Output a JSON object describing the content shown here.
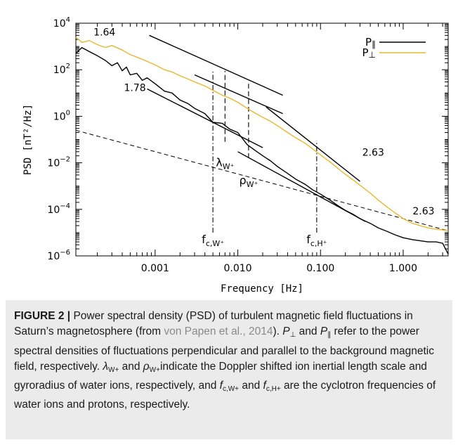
{
  "chart_data": {
    "type": "line",
    "xlabel": "Frequency [Hz]",
    "ylabel": "PSD [nT²/Hz]",
    "xscale": "log",
    "yscale": "log",
    "xlim": [
      0.00011,
      3.5
    ],
    "ylim": [
      1e-06,
      10000
    ],
    "x_ticks": [
      {
        "v": 0.001,
        "label": "0.001"
      },
      {
        "v": 0.01,
        "label": "0.010"
      },
      {
        "v": 0.1,
        "label": "0.100"
      },
      {
        "v": 1.0,
        "label": "1.000"
      }
    ],
    "y_ticks": [
      {
        "v": 1e-06,
        "b": "10",
        "e": "−6"
      },
      {
        "v": 0.0001,
        "b": "10",
        "e": "−4"
      },
      {
        "v": 0.01,
        "b": "10",
        "e": "−2"
      },
      {
        "v": 1,
        "b": "10",
        "e": "0"
      },
      {
        "v": 100,
        "b": "10",
        "e": "2"
      },
      {
        "v": 10000,
        "b": "10",
        "e": "4"
      }
    ],
    "legend_position": "top-right",
    "series": [
      {
        "name": "P∥",
        "color": "#000000",
        "x": [
          0.00011,
          0.00013,
          0.00016,
          0.0002,
          0.00025,
          0.0003,
          0.00035,
          0.0004,
          0.00045,
          0.0005,
          0.0006,
          0.0007,
          0.0008,
          0.001,
          0.0013,
          0.0016,
          0.002,
          0.0025,
          0.003,
          0.004,
          0.005,
          0.0065,
          0.008,
          0.01,
          0.013,
          0.016,
          0.02,
          0.025,
          0.03,
          0.04,
          0.05,
          0.065,
          0.08,
          0.1,
          0.13,
          0.16,
          0.2,
          0.25,
          0.3,
          0.4,
          0.5,
          0.65,
          0.8,
          1.0,
          1.3,
          1.6,
          2.0,
          2.5,
          3.0,
          3.5
        ],
        "values": [
          500,
          900,
          600,
          400,
          250,
          150,
          200,
          90,
          130,
          60,
          70,
          35,
          45,
          25,
          12,
          10,
          5,
          3.5,
          2.2,
          1.3,
          0.55,
          0.5,
          0.28,
          0.2,
          0.06,
          0.035,
          0.02,
          0.012,
          0.007,
          0.0035,
          0.002,
          0.0012,
          0.0007,
          0.00045,
          0.00025,
          0.00015,
          9e-05,
          6e-05,
          4e-05,
          2.5e-05,
          1.6e-05,
          1.1e-05,
          8e-06,
          6e-06,
          5e-06,
          4.5e-06,
          4e-06,
          4e-06,
          3.5e-06,
          1.2e-06
        ]
      },
      {
        "name": "P⊥",
        "color": "#e8b82e",
        "x": [
          0.00011,
          0.00013,
          0.00016,
          0.0002,
          0.00025,
          0.0003,
          0.0004,
          0.0005,
          0.0006,
          0.0008,
          0.001,
          0.0013,
          0.0016,
          0.002,
          0.0025,
          0.003,
          0.004,
          0.005,
          0.0065,
          0.008,
          0.01,
          0.013,
          0.016,
          0.02,
          0.025,
          0.03,
          0.04,
          0.05,
          0.065,
          0.08,
          0.1,
          0.13,
          0.16,
          0.2,
          0.25,
          0.3,
          0.4,
          0.5,
          0.65,
          0.8,
          1.0,
          1.3,
          1.6,
          2.0,
          2.5,
          3.0,
          3.5
        ],
        "values": [
          2500,
          1500,
          1800,
          1200,
          900,
          1100,
          700,
          450,
          350,
          230,
          160,
          100,
          80,
          55,
          40,
          30,
          20,
          13,
          8,
          6,
          4,
          2.2,
          1.4,
          0.9,
          0.6,
          0.4,
          0.2,
          0.12,
          0.07,
          0.04,
          0.022,
          0.011,
          0.006,
          0.0032,
          0.0018,
          0.0011,
          0.0005,
          0.00025,
          0.00012,
          7e-05,
          4e-05,
          2.5e-05,
          2e-05,
          1.6e-05,
          1.4e-05,
          1.3e-05,
          1.2e-05
        ]
      }
    ],
    "fit_lines": [
      {
        "slope_label": "1.64",
        "x": [
          0.00085,
          0.035
        ],
        "y": [
          3000,
          8
        ]
      },
      {
        "slope_label": "",
        "x": [
          0.003,
          0.035
        ],
        "y": [
          60,
          1.3
        ]
      },
      {
        "slope_label": "1.78",
        "x": [
          0.0008,
          0.02
        ],
        "y": [
          15,
          0.045
        ]
      },
      {
        "slope_label": "2.63",
        "x": [
          0.022,
          0.3
        ],
        "y": [
          2.5,
          0.0016
        ]
      },
      {
        "slope_label": "",
        "x": [
          0.01,
          0.35
        ],
        "y": [
          0.03,
          3e-05
        ]
      }
    ],
    "fit_labels": [
      {
        "text": "1.64",
        "x": 0.00018,
        "y": 3000
      },
      {
        "text": "1.78",
        "x": 0.00042,
        "y": 12
      },
      {
        "text": "2.63",
        "x": 0.32,
        "y": 0.02
      },
      {
        "text": "2.63",
        "x": 1.3,
        "y": 6e-05
      }
    ],
    "noise_line": {
      "x": [
        0.00011,
        3.5
      ],
      "y": [
        0.25,
        1.2e-05
      ]
    },
    "markers": [
      {
        "name": "f_c,W+",
        "x": 0.005,
        "style": "dashdot",
        "y": [
          1e-05,
          90
        ],
        "label_main": "f",
        "label_sub": "c,W⁺",
        "label_y": 3.5e-06
      },
      {
        "name": "lambda_W+",
        "x": 0.007,
        "style": "dashed",
        "y": [
          0.08,
          90
        ],
        "label_main": "λ",
        "label_sub": "W⁺",
        "label_y": 0.007
      },
      {
        "name": "rho_W+",
        "x": 0.0135,
        "style": "dashed",
        "y": [
          0.016,
          25
        ],
        "label_main": "ρ",
        "label_sub": "W⁺",
        "label_y": 0.0012
      },
      {
        "name": "f_c,H+",
        "x": 0.09,
        "style": "dashdot",
        "y": [
          1e-05,
          0.09
        ],
        "label_main": "f",
        "label_sub": "c,H⁺",
        "label_y": 3.5e-06
      }
    ]
  },
  "caption": {
    "label": "FIGURE 2 |",
    "text_1": " Power spectral density (PSD) of turbulent magnetic field fluctuations in Saturn’s magnetosphere (from ",
    "ref": "von Papen et al., 2014",
    "text_2": "). ",
    "p_perp": "P",
    "p_perp_sub": "⊥",
    "text_3": " and ",
    "p_par": "P",
    "p_par_sub": "∥",
    "text_4": " refer to the power spectral densities of fluctuations perpendicular and parallel to the background magnetic field, respectively. ",
    "lambda": "λ",
    "lambda_sub": "W+",
    "text_5": " and ",
    "rho": "ρ",
    "rho_sub": "W+",
    "text_6": "indicate the Doppler shifted ion inertial length scale and gyroradius of water ions, respectively, and ",
    "f1": "f",
    "f1_sub": "c,W+",
    "text_7": " and ",
    "f2": "f",
    "f2_sub": "c,H+",
    "text_8": " are the cyclotron frequencies of water ions and protons, respectively."
  }
}
